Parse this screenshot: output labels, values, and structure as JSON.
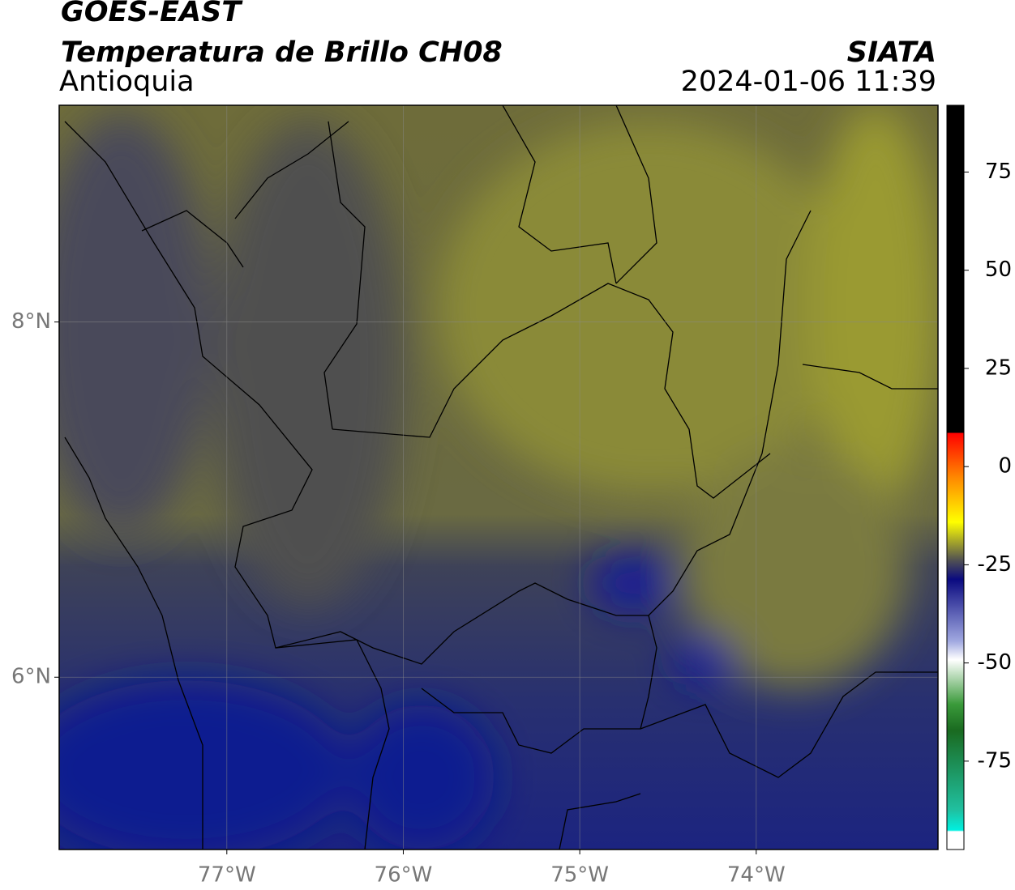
{
  "header": {
    "satellite": "GOES-EAST",
    "product": "Temperatura de Brillo CH08",
    "region": "Antioquia",
    "source": "SIATA",
    "datetime": "2024-01-06 11:39"
  },
  "map": {
    "xlim": [
      -77.95,
      -72.97
    ],
    "ylim": [
      5.03,
      9.22
    ],
    "xticks": [
      {
        "value": -77,
        "label": "77°W"
      },
      {
        "value": -76,
        "label": "76°W"
      },
      {
        "value": -75,
        "label": "75°W"
      },
      {
        "value": -74,
        "label": "74°W"
      }
    ],
    "yticks": [
      {
        "value": 8,
        "label": "8°N"
      },
      {
        "value": 6,
        "label": "6°N"
      }
    ],
    "grid": true
  },
  "colorbar": {
    "clim": [
      -97.5,
      92
    ],
    "ticks": [
      75,
      50,
      25,
      0,
      -25,
      -50,
      -75
    ]
  }
}
